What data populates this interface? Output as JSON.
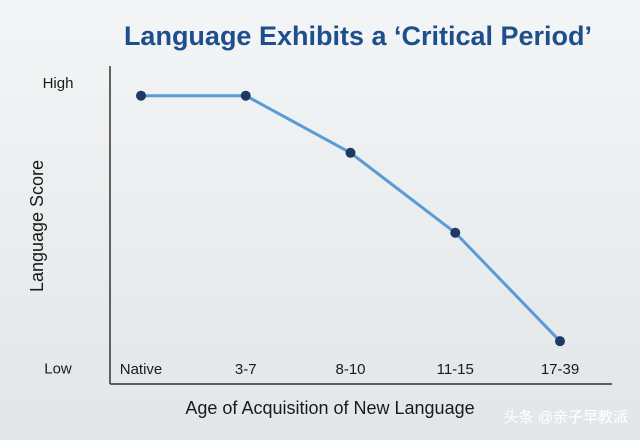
{
  "chart_data": {
    "type": "line",
    "title": "Language Exhibits a ‘Critical Period’",
    "x_label": "Age of Acquisition of New Language",
    "y_label": "Language Score",
    "categories": [
      "Native",
      "3-7",
      "8-10",
      "11-15",
      "17-39"
    ],
    "series": [
      {
        "name": "Language Score",
        "color": "#5b9bd5",
        "marker_color": "#1f3864",
        "values": [
          96,
          96,
          76,
          48,
          10
        ]
      }
    ],
    "ylim": [
      -5,
      105
    ],
    "yticks": [
      {
        "value": 0,
        "label": "Low"
      },
      {
        "value": 100,
        "label": "High"
      }
    ],
    "watermark": "头条 @亲子早教派"
  }
}
